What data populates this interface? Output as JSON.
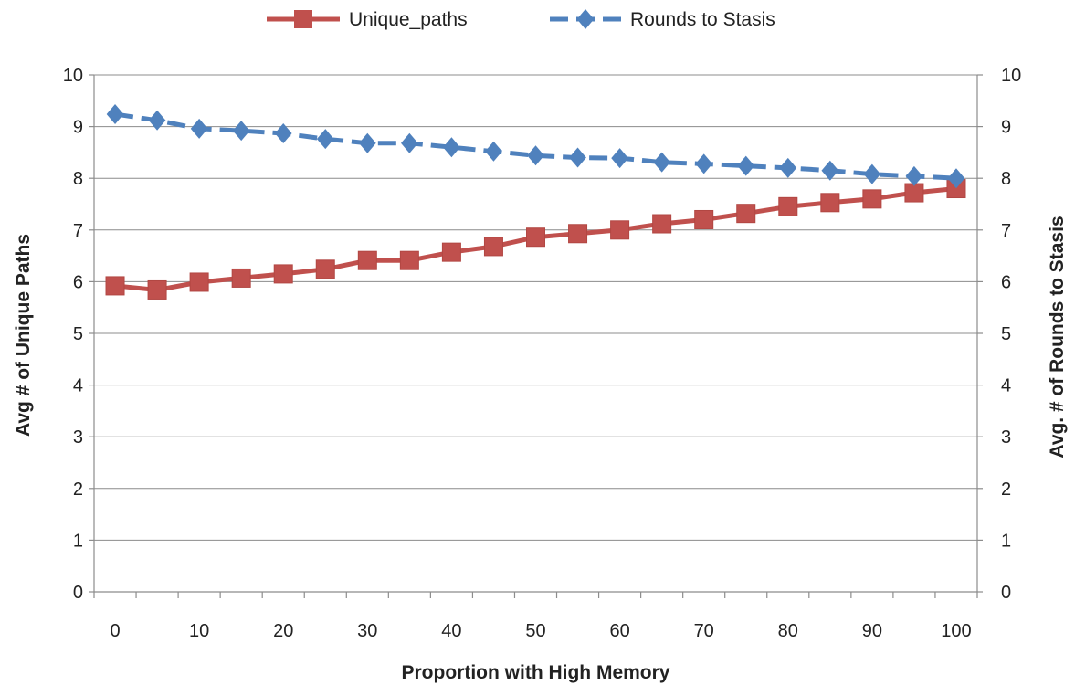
{
  "chart_data": {
    "type": "line",
    "xlabel": "Proportion with High Memory",
    "ylabel_left": "Avg # of Unique Paths",
    "ylabel_right": "Avg. # of Rounds  to Stasis",
    "x": [
      0,
      5,
      10,
      15,
      20,
      25,
      30,
      35,
      40,
      45,
      50,
      55,
      60,
      65,
      70,
      75,
      80,
      85,
      90,
      95,
      100
    ],
    "x_tick_labels": [
      "0",
      "10",
      "20",
      "30",
      "40",
      "50",
      "60",
      "70",
      "80",
      "90",
      "100"
    ],
    "y_tick_labels": [
      "0",
      "1",
      "2",
      "3",
      "4",
      "5",
      "6",
      "7",
      "8",
      "9",
      "10"
    ],
    "ylim": [
      0,
      10
    ],
    "grid": true,
    "legend_position": "top",
    "series": [
      {
        "name": "Unique_paths",
        "axis": "left",
        "color": "#c0504d",
        "marker": "square",
        "line_style": "solid",
        "values": [
          5.92,
          5.84,
          5.99,
          6.07,
          6.15,
          6.24,
          6.41,
          6.41,
          6.57,
          6.68,
          6.86,
          6.93,
          7.0,
          7.12,
          7.2,
          7.32,
          7.45,
          7.53,
          7.6,
          7.72,
          7.8
        ]
      },
      {
        "name": "Rounds to Stasis",
        "axis": "right",
        "color": "#4f81bd",
        "marker": "diamond",
        "line_style": "dashed",
        "values": [
          9.24,
          9.12,
          8.96,
          8.92,
          8.87,
          8.76,
          8.68,
          8.68,
          8.6,
          8.52,
          8.44,
          8.4,
          8.39,
          8.31,
          8.28,
          8.24,
          8.2,
          8.15,
          8.08,
          8.04,
          8.0
        ]
      }
    ]
  }
}
